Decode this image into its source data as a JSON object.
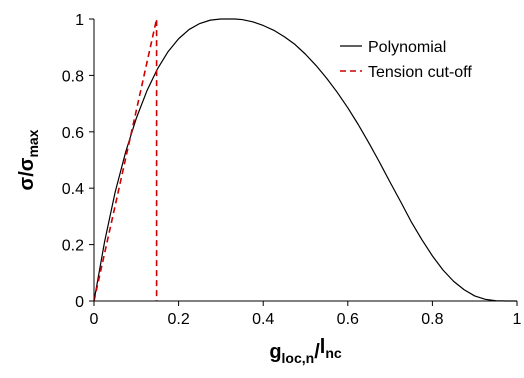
{
  "chart_data": {
    "type": "line",
    "title": "",
    "xlabel": {
      "main": "g",
      "sub": "loc,n",
      "sep": "/",
      "main2": "l",
      "sub2": "nc"
    },
    "ylabel": {
      "main": "σ",
      "sep": "/",
      "main2": "σ",
      "sub2": "max"
    },
    "xlim": [
      0,
      1
    ],
    "ylim": [
      0,
      1
    ],
    "xticks": [
      0,
      0.2,
      0.4,
      0.6,
      0.8,
      1
    ],
    "yticks": [
      0,
      0.2,
      0.4,
      0.6,
      0.8,
      1
    ],
    "xtick_labels": [
      "0",
      "0.2",
      "0.4",
      "0.6",
      "0.8",
      "1"
    ],
    "ytick_labels": [
      "0",
      "0.2",
      "0.4",
      "0.6",
      "0.8",
      "1"
    ],
    "grid": false,
    "legend_position": "top-right",
    "series": [
      {
        "name": "Polynomial",
        "style": "solid",
        "color": "#000000",
        "x": [
          0,
          0.025,
          0.05,
          0.075,
          0.1,
          0.125,
          0.15,
          0.175,
          0.2,
          0.225,
          0.25,
          0.275,
          0.3,
          0.325,
          0.333,
          0.35,
          0.375,
          0.4,
          0.425,
          0.45,
          0.475,
          0.5,
          0.525,
          0.55,
          0.575,
          0.6,
          0.625,
          0.65,
          0.675,
          0.7,
          0.725,
          0.75,
          0.775,
          0.8,
          0.825,
          0.85,
          0.875,
          0.9,
          0.925,
          0.95,
          0.975,
          1
        ],
        "y": [
          0,
          0.21,
          0.386,
          0.529,
          0.648,
          0.745,
          0.823,
          0.884,
          0.93,
          0.963,
          0.984,
          0.996,
          1.0,
          1.0,
          1.0,
          0.998,
          0.99,
          0.977,
          0.96,
          0.937,
          0.91,
          0.875,
          0.835,
          0.79,
          0.74,
          0.685,
          0.625,
          0.56,
          0.492,
          0.421,
          0.352,
          0.281,
          0.218,
          0.16,
          0.11,
          0.07,
          0.04,
          0.018,
          0.006,
          0.001,
          0.0,
          0
        ]
      },
      {
        "name": "Tension cut-off",
        "style": "dashed",
        "color": "#cc0000",
        "x": [
          0,
          0.148,
          0.148
        ],
        "y": [
          0,
          1,
          0
        ]
      }
    ]
  }
}
